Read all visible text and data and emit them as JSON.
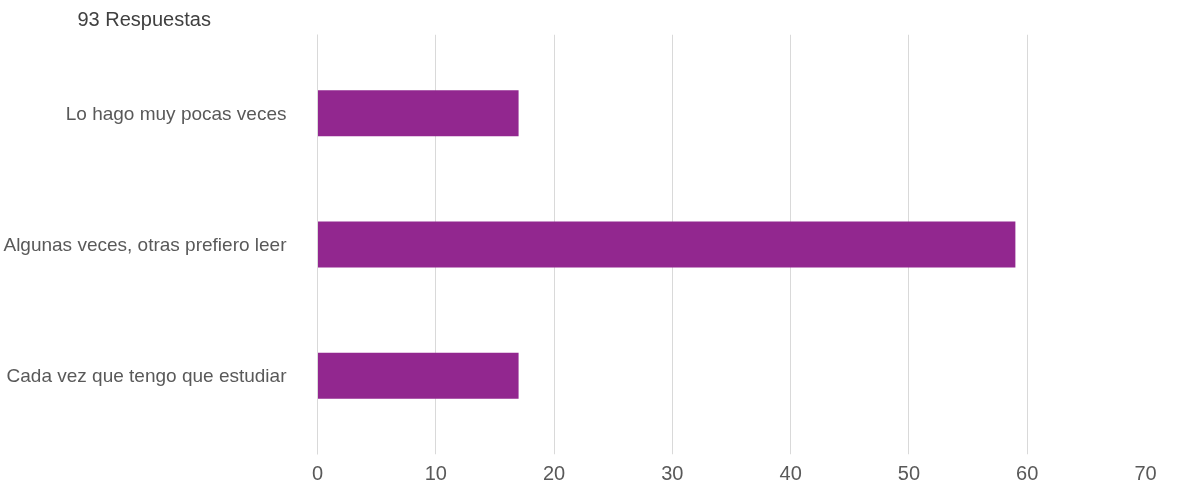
{
  "chart_data": {
    "type": "bar",
    "orientation": "horizontal",
    "title": "93 Respuestas",
    "categories": [
      "Lo hago muy pocas veces",
      "Algunas veces, otras prefiero leer",
      "Cada vez que tengo que estudiar"
    ],
    "values": [
      17,
      59,
      17
    ],
    "color": "#92278f",
    "xlim": [
      0,
      70
    ],
    "xticks": [
      0,
      10,
      20,
      30,
      40,
      50,
      60,
      70
    ],
    "grid": "x"
  }
}
